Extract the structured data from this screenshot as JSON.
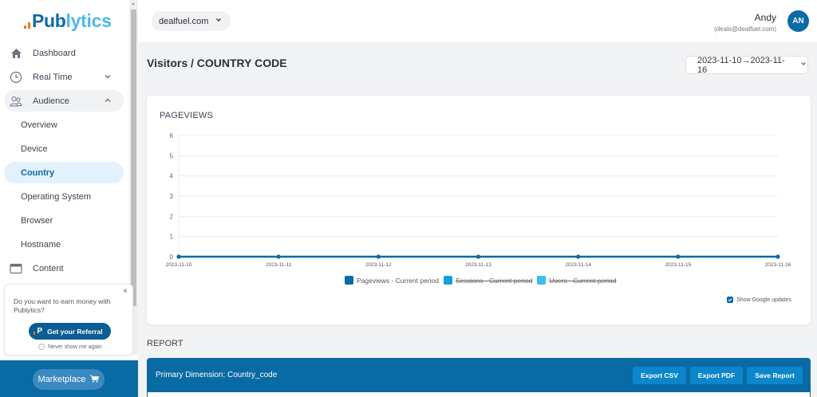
{
  "brand": {
    "part1": "Pub",
    "part2": "lytics"
  },
  "sidebar": {
    "items": [
      {
        "label": "Dashboard",
        "icon": "home-icon"
      },
      {
        "label": "Real Time",
        "icon": "clock-icon",
        "expandable": true
      },
      {
        "label": "Audience",
        "icon": "users-icon",
        "expandable": true,
        "open": true
      },
      {
        "label": "Content",
        "icon": "window-icon"
      }
    ],
    "audience_sub": [
      {
        "label": "Overview"
      },
      {
        "label": "Device"
      },
      {
        "label": "Country",
        "active": true
      },
      {
        "label": "Operating System"
      },
      {
        "label": "Browser"
      },
      {
        "label": "Hostname"
      }
    ]
  },
  "referral": {
    "message": "Do you want to earn money with Publytics?",
    "button": "Get your Referral",
    "never_show": "Never show me again",
    "close": "×"
  },
  "marketplace": {
    "label": "Marketplace"
  },
  "topbar": {
    "site": "dealfuel.com",
    "user_name": "Andy",
    "user_email": "(deals@dealfuel.com)",
    "avatar_initials": "AN"
  },
  "page": {
    "title": "Visitors / COUNTRY CODE",
    "date_range": "2023-11-10→2023-11-16"
  },
  "chart_card": {
    "title": "PAGEVIEWS",
    "show_google_updates": "Show Google updates"
  },
  "chart_data": {
    "type": "line",
    "title": "PAGEVIEWS",
    "x": [
      "2023-11-10",
      "2023-11-11",
      "2023-11-12",
      "2023-11-13",
      "2023-11-14",
      "2023-11-15",
      "2023-11-16"
    ],
    "series": [
      {
        "name": "Pageviews - Current period",
        "values": [
          0,
          0,
          0,
          0,
          0,
          0,
          0
        ],
        "color": "#0b6aa6",
        "visible": true
      },
      {
        "name": "Sessions - Current period",
        "values": [],
        "color": "#0ea0df",
        "visible": false
      },
      {
        "name": "Users - Current period",
        "values": [],
        "color": "#3dbcf0",
        "visible": false
      }
    ],
    "yticks": [
      0,
      1,
      2,
      3,
      4,
      5,
      6
    ],
    "ylim": [
      0,
      6
    ],
    "xlabel": "",
    "ylabel": "",
    "grid": true,
    "legend_position": "bottom"
  },
  "report": {
    "label": "REPORT",
    "primary_dimension": "Primary Dimension: Country_code",
    "buttons": [
      "Export CSV",
      "Export PDF",
      "Save Report"
    ]
  },
  "colors": {
    "primary": "#0a6aa3",
    "accent_orange": "#f07b1d",
    "light_blue": "#4fb8ea",
    "active_bg": "#e3f1fc"
  }
}
